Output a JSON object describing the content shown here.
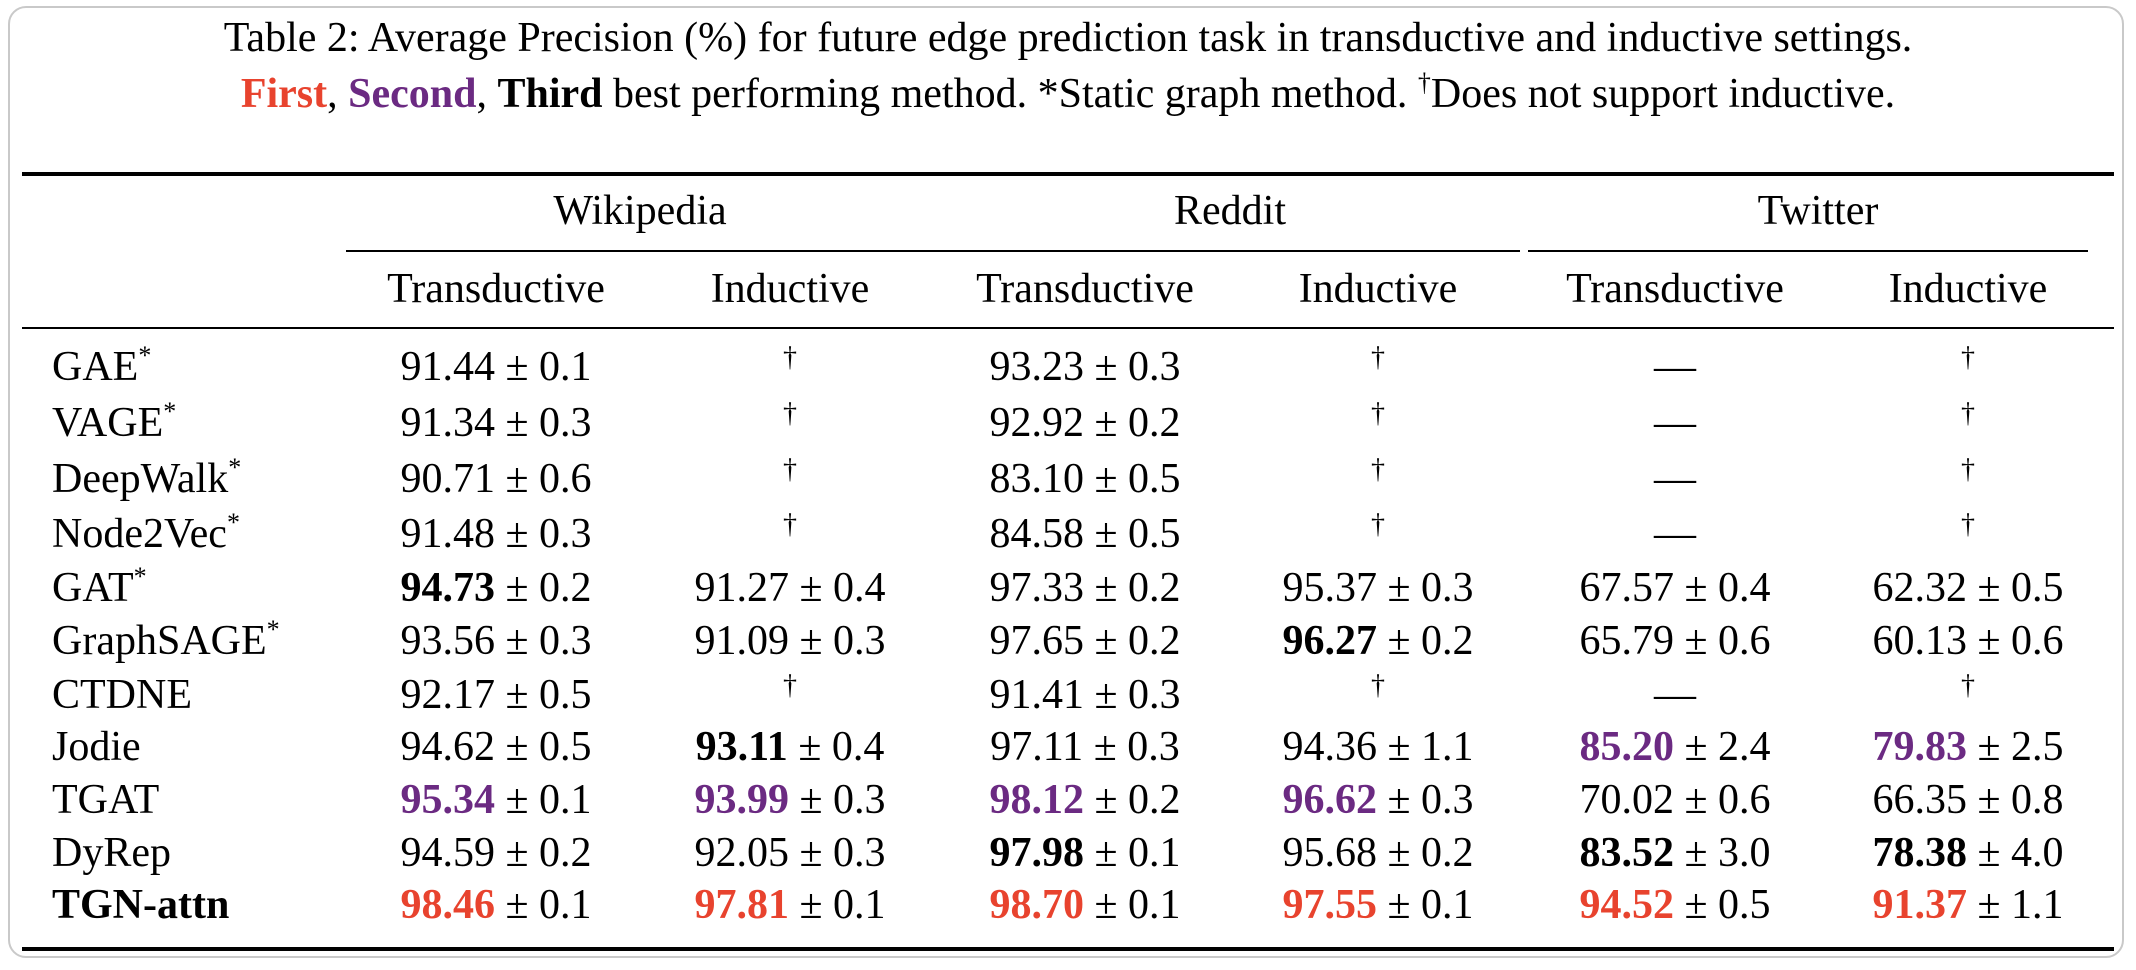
{
  "caption": {
    "line1": "Table 2: Average Precision (%) for future edge prediction task in transductive and inductive settings.",
    "first": "First",
    "sep1": ", ",
    "second": "Second",
    "sep2": ", ",
    "third": "Third",
    "rest": " best performing method. ",
    "star": "*",
    "static": "Static graph method. ",
    "dagger": "†",
    "no_inductive": "Does not support inductive."
  },
  "table": {
    "datasets": [
      "Wikipedia",
      "Reddit",
      "Twitter"
    ],
    "settings": [
      "Transductive",
      "Inductive",
      "Transductive",
      "Inductive",
      "Transductive",
      "Inductive"
    ],
    "rows": [
      {
        "method": "GAE",
        "mark": "*",
        "bold_label": false,
        "cells": [
          {
            "v": "91.44",
            "e": " ± 0.1",
            "s": ""
          },
          {
            "v": "†",
            "e": "",
            "s": "dagger"
          },
          {
            "v": "93.23",
            "e": " ± 0.3",
            "s": ""
          },
          {
            "v": "†",
            "e": "",
            "s": "dagger"
          },
          {
            "v": "—",
            "e": "",
            "s": ""
          },
          {
            "v": "†",
            "e": "",
            "s": "dagger"
          }
        ]
      },
      {
        "method": "VAGE",
        "mark": "*",
        "bold_label": false,
        "cells": [
          {
            "v": "91.34",
            "e": " ± 0.3",
            "s": ""
          },
          {
            "v": "†",
            "e": "",
            "s": "dagger"
          },
          {
            "v": "92.92",
            "e": " ± 0.2",
            "s": ""
          },
          {
            "v": "†",
            "e": "",
            "s": "dagger"
          },
          {
            "v": "—",
            "e": "",
            "s": ""
          },
          {
            "v": "†",
            "e": "",
            "s": "dagger"
          }
        ]
      },
      {
        "method": "DeepWalk",
        "mark": "*",
        "bold_label": false,
        "cells": [
          {
            "v": "90.71",
            "e": " ± 0.6",
            "s": ""
          },
          {
            "v": "†",
            "e": "",
            "s": "dagger"
          },
          {
            "v": "83.10",
            "e": " ± 0.5",
            "s": ""
          },
          {
            "v": "†",
            "e": "",
            "s": "dagger"
          },
          {
            "v": "—",
            "e": "",
            "s": ""
          },
          {
            "v": "†",
            "e": "",
            "s": "dagger"
          }
        ]
      },
      {
        "method": "Node2Vec",
        "mark": "*",
        "bold_label": false,
        "cells": [
          {
            "v": "91.48",
            "e": " ± 0.3",
            "s": ""
          },
          {
            "v": "†",
            "e": "",
            "s": "dagger"
          },
          {
            "v": "84.58",
            "e": " ± 0.5",
            "s": ""
          },
          {
            "v": "†",
            "e": "",
            "s": "dagger"
          },
          {
            "v": "—",
            "e": "",
            "s": ""
          },
          {
            "v": "†",
            "e": "",
            "s": "dagger"
          }
        ]
      },
      {
        "method": "GAT",
        "mark": "*",
        "bold_label": false,
        "cells": [
          {
            "v": "94.73",
            "e": " ± 0.2",
            "s": "b"
          },
          {
            "v": "91.27",
            "e": " ± 0.4",
            "s": ""
          },
          {
            "v": "97.33",
            "e": " ± 0.2",
            "s": ""
          },
          {
            "v": "95.37",
            "e": " ± 0.3",
            "s": ""
          },
          {
            "v": "67.57",
            "e": " ± 0.4",
            "s": ""
          },
          {
            "v": "62.32",
            "e": " ± 0.5",
            "s": ""
          }
        ]
      },
      {
        "method": "GraphSAGE",
        "mark": "*",
        "bold_label": false,
        "cells": [
          {
            "v": "93.56",
            "e": " ± 0.3",
            "s": ""
          },
          {
            "v": "91.09",
            "e": " ± 0.3",
            "s": ""
          },
          {
            "v": "97.65",
            "e": " ± 0.2",
            "s": ""
          },
          {
            "v": "96.27",
            "e": " ± 0.2",
            "s": "b"
          },
          {
            "v": "65.79",
            "e": " ± 0.6",
            "s": ""
          },
          {
            "v": "60.13",
            "e": " ± 0.6",
            "s": ""
          }
        ]
      },
      {
        "method": "CTDNE",
        "mark": "",
        "bold_label": false,
        "cells": [
          {
            "v": "92.17",
            "e": " ± 0.5",
            "s": ""
          },
          {
            "v": "†",
            "e": "",
            "s": "dagger"
          },
          {
            "v": "91.41",
            "e": " ± 0.3",
            "s": ""
          },
          {
            "v": "†",
            "e": "",
            "s": "dagger"
          },
          {
            "v": "—",
            "e": "",
            "s": ""
          },
          {
            "v": "†",
            "e": "",
            "s": "dagger"
          }
        ]
      },
      {
        "method": "Jodie",
        "mark": "",
        "bold_label": false,
        "cells": [
          {
            "v": "94.62",
            "e": " ± 0.5",
            "s": ""
          },
          {
            "v": "93.11",
            "e": " ± 0.4",
            "s": "b"
          },
          {
            "v": "97.11",
            "e": " ± 0.3",
            "s": ""
          },
          {
            "v": "94.36",
            "e": " ± 1.1",
            "s": ""
          },
          {
            "v": "85.20",
            "e": " ± 2.4",
            "s": "second"
          },
          {
            "v": "79.83",
            "e": " ± 2.5",
            "s": "second"
          }
        ]
      },
      {
        "method": "TGAT",
        "mark": "",
        "bold_label": false,
        "cells": [
          {
            "v": "95.34",
            "e": " ± 0.1",
            "s": "second"
          },
          {
            "v": "93.99",
            "e": " ± 0.3",
            "s": "second"
          },
          {
            "v": "98.12",
            "e": " ± 0.2",
            "s": "second"
          },
          {
            "v": "96.62",
            "e": " ± 0.3",
            "s": "second"
          },
          {
            "v": "70.02",
            "e": " ± 0.6",
            "s": ""
          },
          {
            "v": "66.35",
            "e": " ± 0.8",
            "s": ""
          }
        ]
      },
      {
        "method": "DyRep",
        "mark": "",
        "bold_label": false,
        "cells": [
          {
            "v": "94.59",
            "e": " ± 0.2",
            "s": ""
          },
          {
            "v": "92.05",
            "e": " ± 0.3",
            "s": ""
          },
          {
            "v": "97.98",
            "e": " ± 0.1",
            "s": "b"
          },
          {
            "v": "95.68",
            "e": " ± 0.2",
            "s": ""
          },
          {
            "v": "83.52",
            "e": " ± 3.0",
            "s": "b"
          },
          {
            "v": "78.38",
            "e": " ± 4.0",
            "s": "b"
          }
        ]
      },
      {
        "method": "TGN-attn",
        "mark": "",
        "bold_label": true,
        "cells": [
          {
            "v": "98.46",
            "e": " ± 0.1",
            "s": "first"
          },
          {
            "v": "97.81",
            "e": " ± 0.1",
            "s": "first"
          },
          {
            "v": "98.70",
            "e": " ± 0.1",
            "s": "first"
          },
          {
            "v": "97.55",
            "e": " ± 0.1",
            "s": "first"
          },
          {
            "v": "94.52",
            "e": " ± 0.5",
            "s": "first"
          },
          {
            "v": "91.37",
            "e": " ± 1.1",
            "s": "first"
          }
        ]
      }
    ]
  },
  "colors": {
    "first": "#e8432e",
    "second": "#6b2a82",
    "frame": "#c9c9c9"
  }
}
